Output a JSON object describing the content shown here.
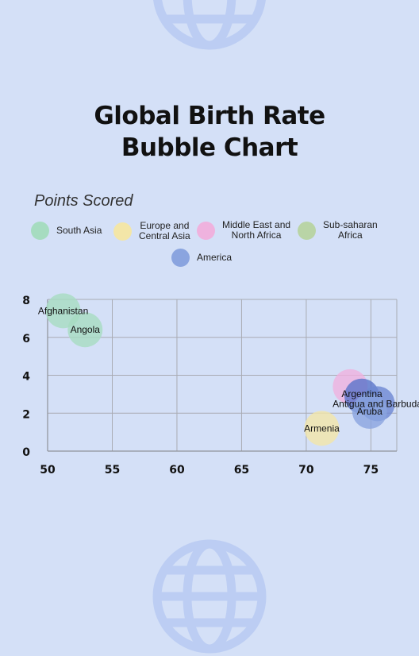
{
  "title_lines": [
    "Global Birth Rate",
    "Bubble Chart"
  ],
  "subtitle": "Points Scored",
  "legend": [
    {
      "label_lines": [
        "South Asia"
      ],
      "color": "#a6dcc0"
    },
    {
      "label_lines": [
        "Europe and",
        "Central Asia"
      ],
      "color": "#f3e6a8"
    },
    {
      "label_lines": [
        "Middle East and",
        "North Africa"
      ],
      "color": "#efb2de"
    },
    {
      "label_lines": [
        "Sub-saharan",
        "Africa"
      ],
      "color": "#b9d4a6"
    },
    {
      "label_lines": [
        "America"
      ],
      "color": "#8aa4df"
    }
  ],
  "chart_data": {
    "type": "scatter",
    "xlim": [
      50,
      77
    ],
    "ylim": [
      0,
      8
    ],
    "x_ticks": [
      50,
      55,
      60,
      65,
      70,
      75
    ],
    "y_ticks": [
      0,
      2,
      4,
      6,
      8
    ],
    "grid": true,
    "points": [
      {
        "label": "Afghanistan",
        "x": 51.2,
        "y": 7.4,
        "group": "South Asia",
        "color": "#a6dcc0"
      },
      {
        "label": "Angola",
        "x": 52.9,
        "y": 6.4,
        "group": "South Asia",
        "color": "#a6dcc0"
      },
      {
        "label": "",
        "x": 73.4,
        "y": 3.4,
        "group": "Middle East and North Africa",
        "color": "#efb2de"
      },
      {
        "label": "Argentina",
        "x": 74.3,
        "y": 2.9,
        "group": "America",
        "color": "#5a74c9"
      },
      {
        "label": "Antigua and Barbuda",
        "x": 75.5,
        "y": 2.5,
        "group": "America",
        "color": "#6d87d2"
      },
      {
        "label": "Aruba",
        "x": 74.9,
        "y": 2.1,
        "group": "America",
        "color": "#8aa4df"
      },
      {
        "label": "Armenia",
        "x": 71.2,
        "y": 1.2,
        "group": "Europe and Central Asia",
        "color": "#f3e6a8"
      }
    ]
  }
}
